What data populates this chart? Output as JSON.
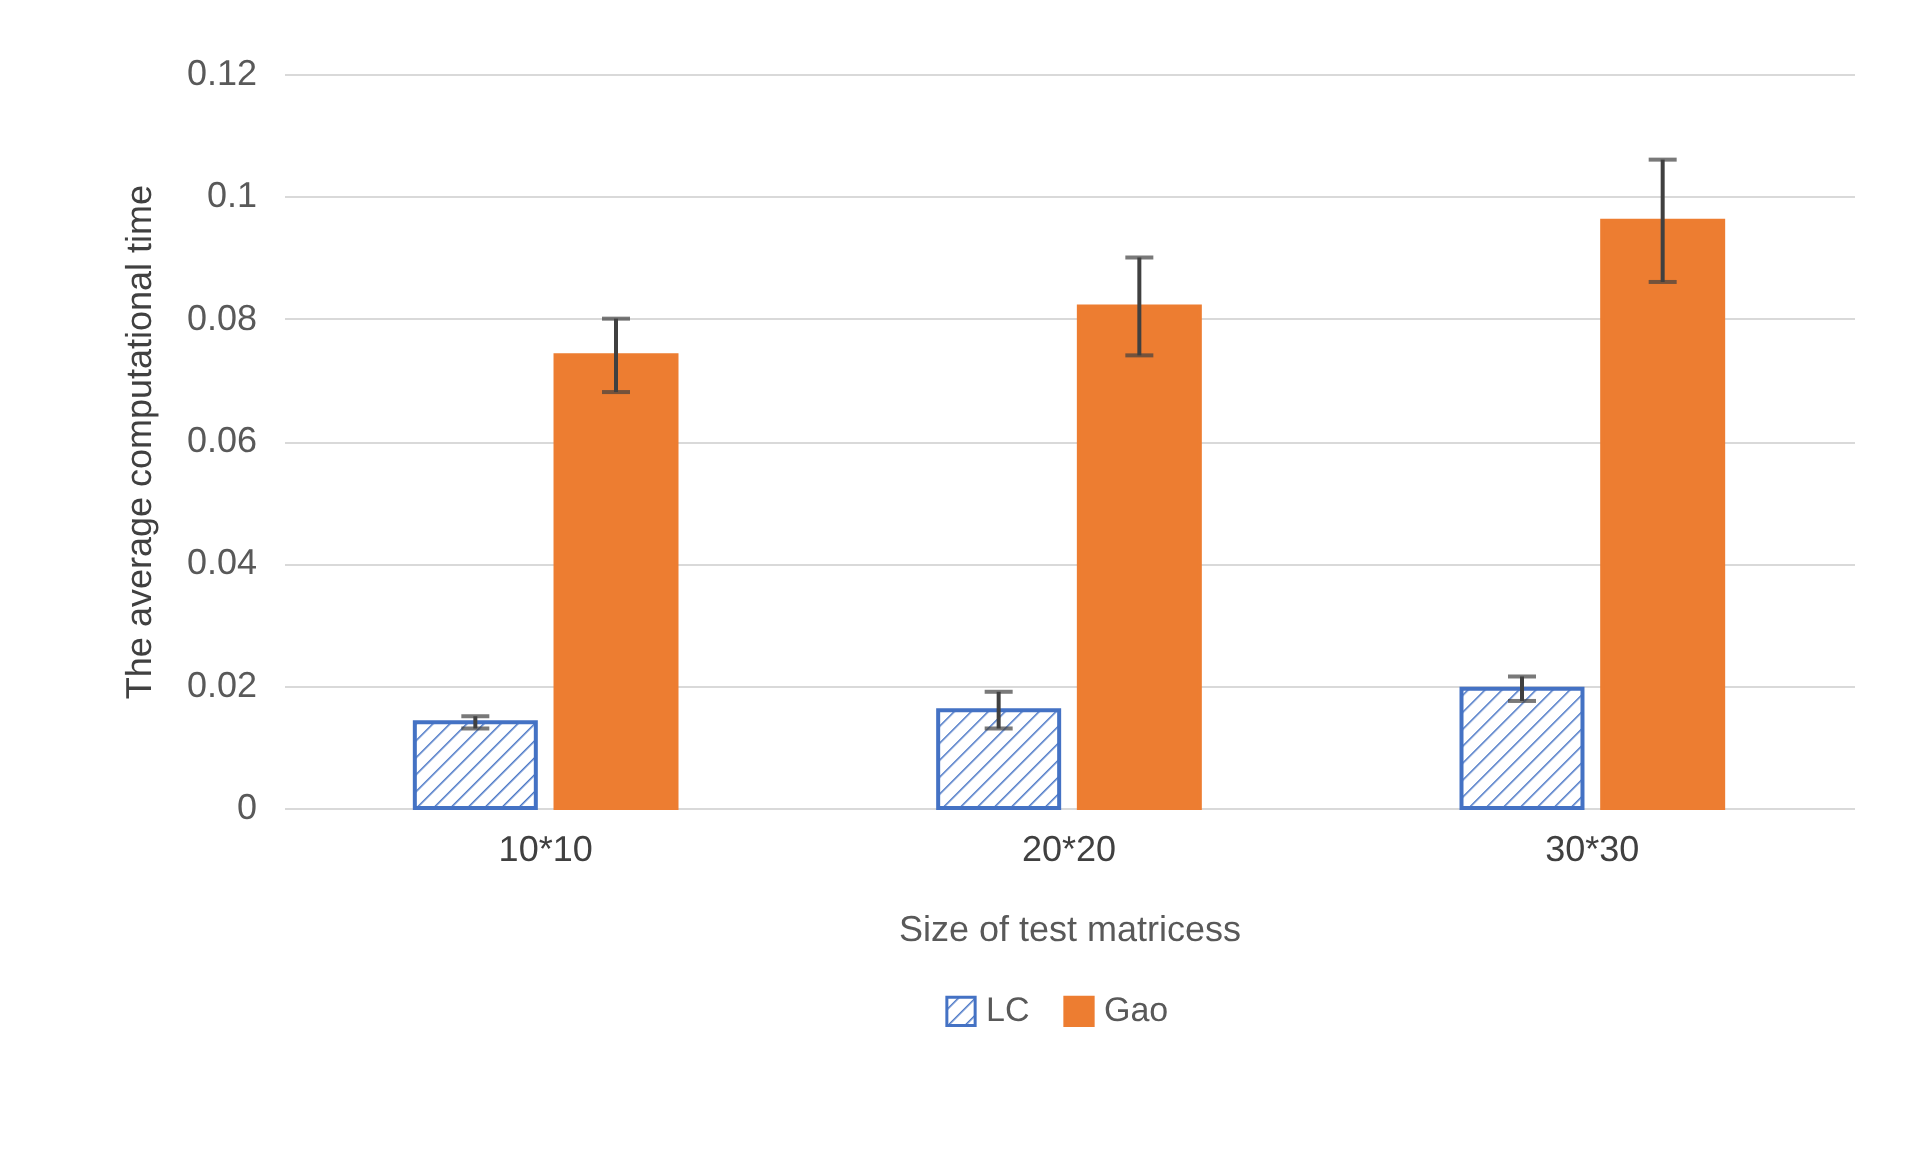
{
  "chart_data": {
    "type": "bar",
    "xlabel": "Size of test matricess",
    "ylabel": "The average computational time",
    "categories": [
      "10*10",
      "20*20",
      "30*30"
    ],
    "series": [
      {
        "name": "LC",
        "color": "#4472c4",
        "values": [
          0.014,
          0.016,
          0.0195
        ],
        "errors": [
          0.001,
          0.003,
          0.002
        ]
      },
      {
        "name": "Gao",
        "color": "#ed7d31",
        "values": [
          0.074,
          0.082,
          0.096
        ],
        "errors": [
          0.006,
          0.008,
          0.01
        ]
      }
    ],
    "ylim": [
      0,
      0.12
    ],
    "yticks": [
      {
        "value": 0,
        "label": "0"
      },
      0.02,
      0.04,
      0.06,
      0.08,
      {
        "value": 0.1,
        "label": "0.1"
      },
      0.12
    ],
    "grid": "y",
    "legend": "bottom"
  }
}
